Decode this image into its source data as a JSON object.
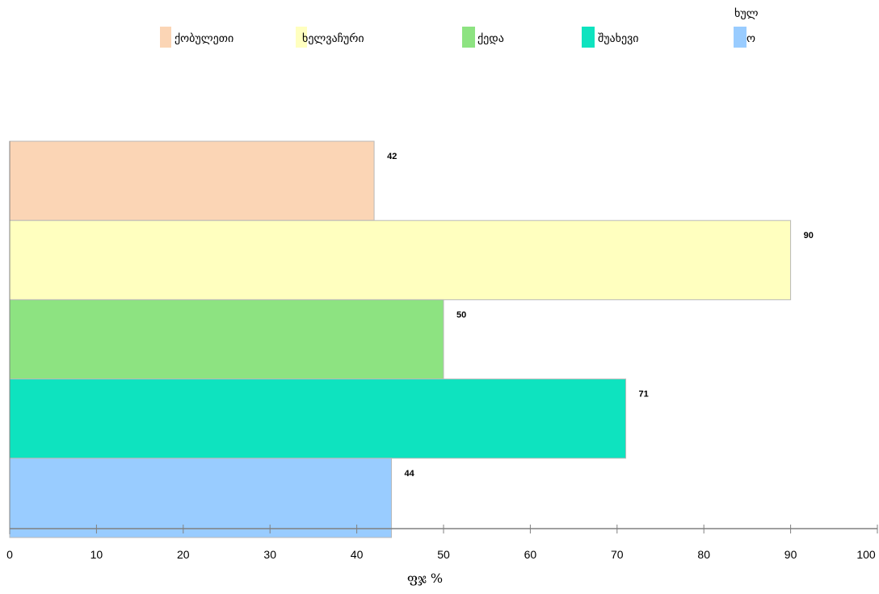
{
  "chart_data": {
    "type": "bar",
    "orientation": "horizontal",
    "categories": [
      "ქობულეთი",
      "ხელვაჩური",
      "ქედა",
      "შუახევი",
      "ხულო"
    ],
    "values": [
      42,
      90,
      50,
      71,
      44
    ],
    "colors": [
      "#FBD5B5",
      "#FFFFBF",
      "#8DE381",
      "#0EE3BF",
      "#99CCFF"
    ],
    "legend": [
      {
        "label": "ქობულეთი"
      },
      {
        "label": "ხელვაჩური"
      },
      {
        "label": "ქედა"
      },
      {
        "label": "შუახევი"
      },
      {
        "label_line1": "ხულ",
        "label_line2": "ო"
      }
    ],
    "legend_position": "top",
    "xlabel": "ფჯ %",
    "xlim": [
      0,
      100
    ],
    "xticks": [
      "0",
      "10",
      "20",
      "30",
      "40",
      "50",
      "60",
      "70",
      "80",
      "90",
      "100"
    ],
    "data_labels": [
      "42",
      "90",
      "50",
      "71",
      "44"
    ],
    "grid": false
  }
}
